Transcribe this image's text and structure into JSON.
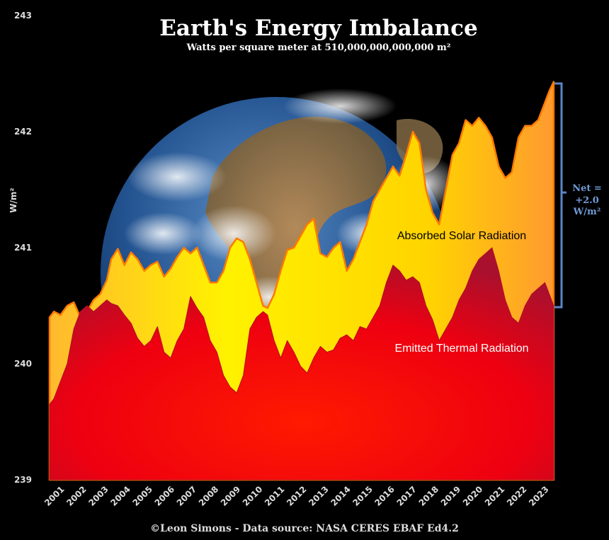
{
  "chart_data": {
    "type": "area",
    "title": "Earth's Energy Imbalance",
    "subtitle": "Watts per square meter at 510,000,000,000,000 m²",
    "ylabel": "W/m²",
    "ylim": [
      239,
      243
    ],
    "y_ticks": [
      "239",
      "240",
      "241",
      "242",
      "243"
    ],
    "x_ticks": [
      "2001",
      "2002",
      "2003",
      "2004",
      "2005",
      "2006",
      "2007",
      "2008",
      "2009",
      "2010",
      "2011",
      "2012",
      "2013",
      "2014",
      "2015",
      "2016",
      "2017",
      "2018",
      "2019",
      "2020",
      "2021",
      "2022",
      "2023"
    ],
    "x_range": [
      2000.5,
      2023.5
    ],
    "series": [
      {
        "name": "Absorbed Solar Radiation",
        "color_top": "#ffe600",
        "color_edge": "#ff7a00",
        "x": [
          2000.5,
          2000.7,
          2001.0,
          2001.3,
          2001.6,
          2001.9,
          2002.2,
          2002.5,
          2002.8,
          2003.1,
          2003.3,
          2003.6,
          2003.9,
          2004.2,
          2004.5,
          2004.8,
          2005.1,
          2005.4,
          2005.7,
          2006.0,
          2006.3,
          2006.6,
          2006.9,
          2007.2,
          2007.5,
          2007.8,
          2008.1,
          2008.4,
          2008.7,
          2009.0,
          2009.3,
          2009.6,
          2009.9,
          2010.2,
          2010.4,
          2010.7,
          2011.0,
          2011.3,
          2011.6,
          2011.9,
          2012.2,
          2012.5,
          2012.8,
          2013.1,
          2013.4,
          2013.7,
          2014.0,
          2014.3,
          2014.6,
          2014.9,
          2015.2,
          2015.5,
          2015.8,
          2016.1,
          2016.4,
          2016.7,
          2017.0,
          2017.3,
          2017.6,
          2017.9,
          2018.2,
          2018.5,
          2018.8,
          2019.1,
          2019.4,
          2019.7,
          2020.0,
          2020.3,
          2020.6,
          2020.9,
          2021.2,
          2021.5,
          2021.8,
          2022.1,
          2022.4,
          2022.7,
          2023.0,
          2023.2,
          2023.4
        ],
        "values": [
          240.4,
          240.45,
          240.42,
          240.5,
          240.53,
          240.4,
          240.45,
          240.55,
          240.6,
          240.72,
          240.9,
          240.99,
          240.85,
          240.96,
          240.9,
          240.8,
          240.85,
          240.88,
          240.75,
          240.82,
          240.92,
          241.0,
          240.95,
          241.0,
          240.85,
          240.7,
          240.7,
          240.8,
          241.0,
          241.08,
          241.05,
          240.9,
          240.7,
          240.5,
          240.48,
          240.6,
          240.8,
          240.98,
          241.0,
          241.1,
          241.2,
          241.25,
          240.95,
          240.92,
          241.0,
          241.05,
          240.8,
          240.9,
          241.05,
          241.2,
          241.4,
          241.5,
          241.6,
          241.7,
          241.62,
          241.8,
          242.0,
          241.9,
          241.5,
          241.3,
          241.2,
          241.5,
          241.8,
          241.9,
          242.1,
          242.05,
          242.12,
          242.05,
          241.95,
          241.7,
          241.6,
          241.65,
          241.95,
          242.05,
          242.05,
          242.1,
          242.25,
          242.35,
          242.43
        ]
      },
      {
        "name": "Emitted Thermal Radiation",
        "color_top": "#ff0000",
        "color_edge": "#b0102a",
        "x": [
          2000.5,
          2000.7,
          2001.0,
          2001.3,
          2001.6,
          2001.9,
          2002.2,
          2002.5,
          2002.8,
          2003.1,
          2003.3,
          2003.6,
          2003.9,
          2004.2,
          2004.5,
          2004.8,
          2005.1,
          2005.4,
          2005.7,
          2006.0,
          2006.3,
          2006.6,
          2006.9,
          2007.2,
          2007.5,
          2007.8,
          2008.1,
          2008.4,
          2008.7,
          2009.0,
          2009.3,
          2009.6,
          2009.9,
          2010.2,
          2010.4,
          2010.7,
          2011.0,
          2011.3,
          2011.6,
          2011.9,
          2012.2,
          2012.5,
          2012.8,
          2013.1,
          2013.4,
          2013.7,
          2014.0,
          2014.3,
          2014.6,
          2014.9,
          2015.2,
          2015.5,
          2015.8,
          2016.1,
          2016.4,
          2016.7,
          2017.0,
          2017.3,
          2017.6,
          2017.9,
          2018.2,
          2018.5,
          2018.8,
          2019.1,
          2019.4,
          2019.7,
          2020.0,
          2020.3,
          2020.6,
          2020.9,
          2021.2,
          2021.5,
          2021.8,
          2022.1,
          2022.4,
          2022.7,
          2023.0,
          2023.2,
          2023.4
        ],
        "values": [
          239.65,
          239.7,
          239.85,
          240.0,
          240.3,
          240.45,
          240.5,
          240.45,
          240.5,
          240.55,
          240.52,
          240.5,
          240.42,
          240.35,
          240.22,
          240.15,
          240.2,
          240.32,
          240.1,
          240.05,
          240.2,
          240.3,
          240.58,
          240.48,
          240.4,
          240.2,
          240.1,
          239.9,
          239.8,
          239.75,
          239.9,
          240.3,
          240.4,
          240.45,
          240.42,
          240.2,
          240.05,
          240.2,
          240.1,
          239.98,
          239.92,
          240.05,
          240.15,
          240.1,
          240.12,
          240.22,
          240.25,
          240.2,
          240.32,
          240.3,
          240.4,
          240.5,
          240.7,
          240.85,
          240.8,
          240.72,
          240.75,
          240.7,
          240.5,
          240.38,
          240.2,
          240.3,
          240.4,
          240.55,
          240.65,
          240.8,
          240.9,
          240.95,
          241.0,
          240.8,
          240.55,
          240.4,
          240.35,
          240.5,
          240.6,
          240.65,
          240.7,
          240.6,
          240.5
        ]
      }
    ],
    "annotation": [
      "Net =",
      "+2.0",
      "W/m²"
    ],
    "credit": "©Leon Simons -  Data source: NASA CERES EBAF Ed4.2",
    "grid": false,
    "background": "#000000"
  }
}
